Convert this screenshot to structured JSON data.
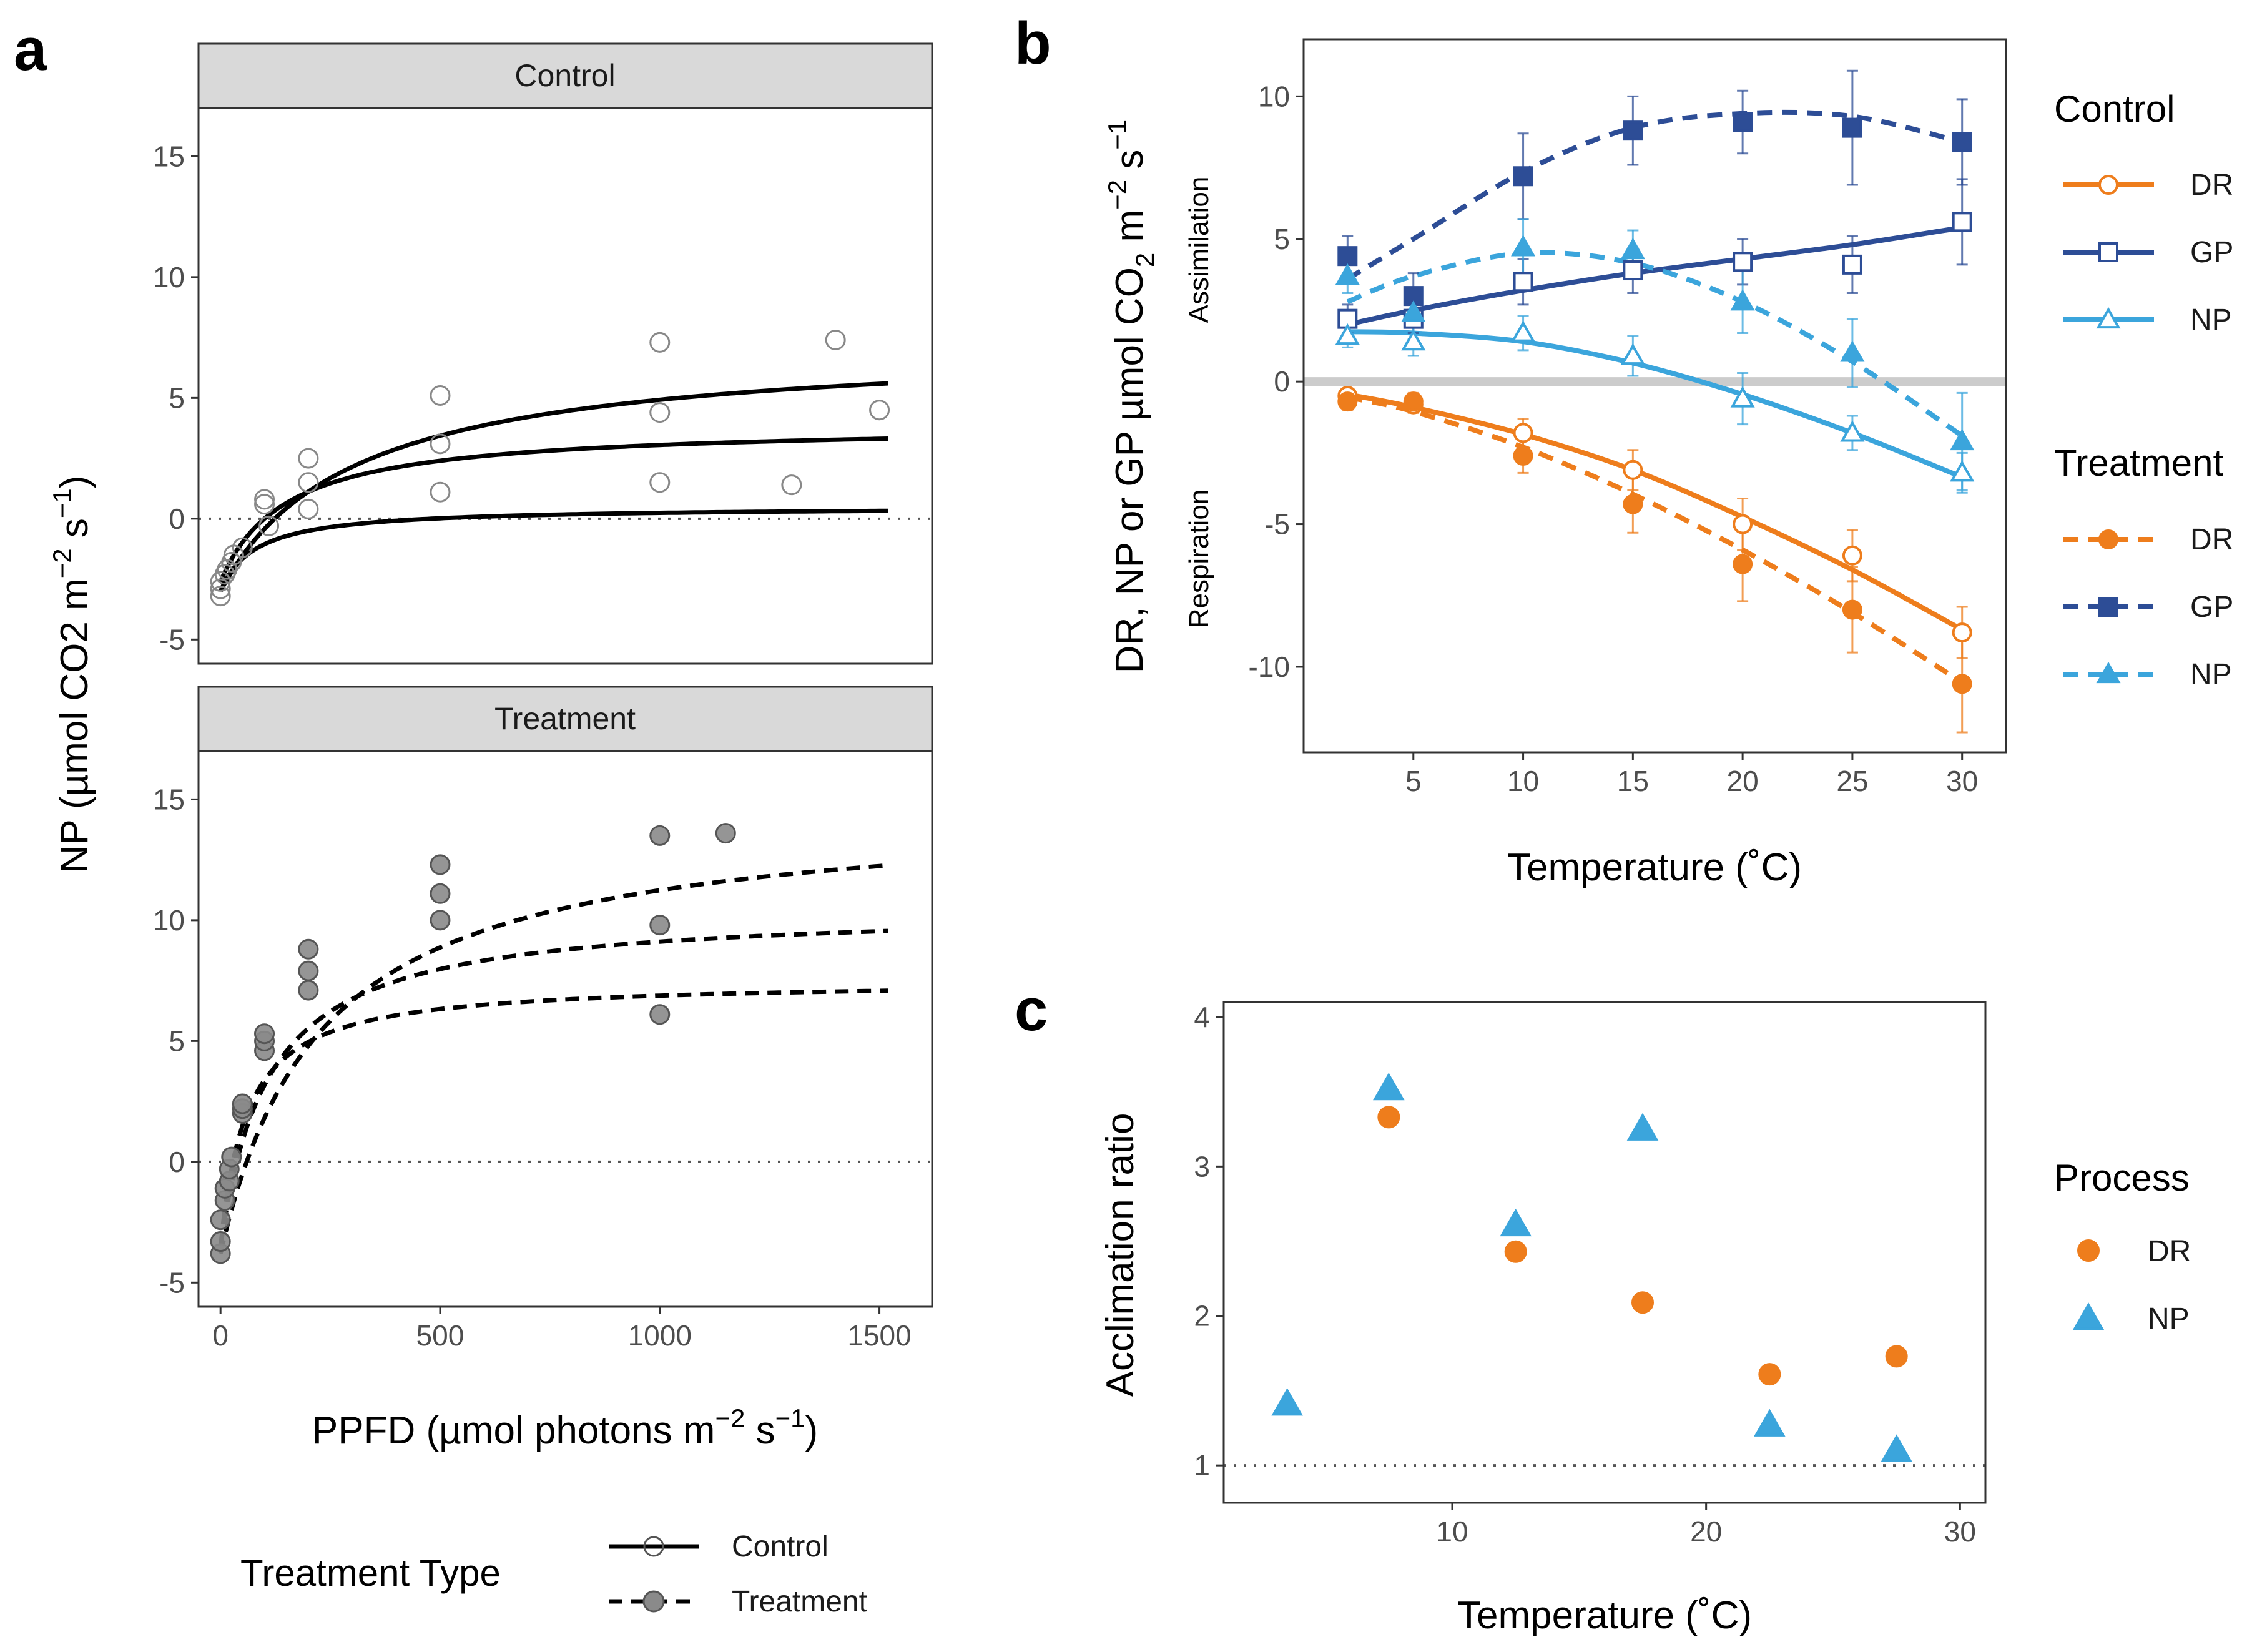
{
  "colors": {
    "dr": "#EE7D1C",
    "gp": "#2D4D96",
    "np": "#3BA5DC",
    "treatment_fill": "#8a8a8a",
    "strip_fill": "#d9d9d9",
    "zero_line": "#cccccc"
  },
  "chart_data": [
    {
      "panel": "a",
      "type": "scatter",
      "facets": [
        "Control",
        "Treatment"
      ],
      "xlabel": "PPFD (µmol photons m",
      "xlabel_sup1": "−2",
      "xlabel_mid": " s",
      "xlabel_sup2": "−1",
      "xlabel_end": ")",
      "ylabel": "NP (µmol CO2 m",
      "ylabel_sup1": "−2",
      "ylabel_mid": " s",
      "ylabel_sup2": "−1",
      "ylabel_end": ")",
      "xlim": [
        -50,
        1620
      ],
      "ylim": [
        -6,
        17
      ],
      "xticks": [
        0,
        500,
        1000,
        1500
      ],
      "yticks": [
        -5,
        0,
        5,
        10,
        15
      ],
      "reference_line": 0,
      "legend": {
        "title": "Treatment Type",
        "items": [
          {
            "label": "Control",
            "linestyle": "solid",
            "marker": "open-circle"
          },
          {
            "label": "Treatment",
            "linestyle": "dashed",
            "marker": "filled-circle"
          }
        ]
      },
      "control_curves": [
        {
          "pmax": 10.3,
          "k": 300,
          "rd": 3.0
        },
        {
          "pmax": 6.5,
          "k": 150,
          "rd": 2.6
        },
        {
          "pmax": 3.5,
          "k": 80,
          "rd": 3.0
        }
      ],
      "treatment_curves": [
        {
          "pmax": 18.5,
          "k": 230,
          "rd": 3.8
        },
        {
          "pmax": 14.0,
          "k": 110,
          "rd": 3.5
        },
        {
          "pmax": 11.0,
          "k": 60,
          "rd": 3.5
        }
      ],
      "control_points": [
        [
          0,
          -3.2
        ],
        [
          0,
          -2.9
        ],
        [
          0,
          -2.6
        ],
        [
          10,
          -2.3
        ],
        [
          15,
          -2.1
        ],
        [
          25,
          -1.8
        ],
        [
          30,
          -1.5
        ],
        [
          50,
          -1.2
        ],
        [
          100,
          0.8
        ],
        [
          100,
          0.6
        ],
        [
          110,
          -0.3
        ],
        [
          200,
          2.5
        ],
        [
          200,
          1.5
        ],
        [
          200,
          0.4
        ],
        [
          500,
          5.1
        ],
        [
          500,
          3.1
        ],
        [
          500,
          1.1
        ],
        [
          1000,
          7.3
        ],
        [
          1000,
          4.4
        ],
        [
          1000,
          1.5
        ],
        [
          1300,
          1.4
        ],
        [
          1400,
          7.4
        ],
        [
          1500,
          4.5
        ]
      ],
      "treatment_points": [
        [
          0,
          -3.8
        ],
        [
          0,
          -3.3
        ],
        [
          0,
          -2.4
        ],
        [
          10,
          -1.6
        ],
        [
          10,
          -1.1
        ],
        [
          20,
          -0.8
        ],
        [
          20,
          -0.3
        ],
        [
          25,
          0.2
        ],
        [
          50,
          2.0
        ],
        [
          50,
          2.2
        ],
        [
          50,
          2.4
        ],
        [
          100,
          4.6
        ],
        [
          100,
          5.0
        ],
        [
          100,
          5.3
        ],
        [
          200,
          7.1
        ],
        [
          200,
          7.9
        ],
        [
          200,
          8.8
        ],
        [
          500,
          10.0
        ],
        [
          500,
          11.1
        ],
        [
          500,
          12.3
        ],
        [
          1000,
          6.1
        ],
        [
          1000,
          9.8
        ],
        [
          1000,
          13.5
        ],
        [
          1150,
          13.6
        ]
      ]
    },
    {
      "panel": "b",
      "type": "line",
      "xlabel": "Temperature (˚C)",
      "ylabel": "DR, NP or GP µmol CO",
      "ylabel_sub": "2",
      "ylabel_mid": " m",
      "ylabel_sup1": "−2",
      "ylabel_mid2": " s",
      "ylabel_sup2": "−1",
      "xlim": [
        0,
        32
      ],
      "ylim": [
        -13,
        12
      ],
      "xticks": [
        5,
        10,
        15,
        20,
        25,
        30
      ],
      "yticks": [
        -10,
        -5,
        0,
        5,
        10
      ],
      "reference_line": 0,
      "side_labels": {
        "upper": "Assimilation",
        "lower": "Respiration"
      },
      "x": [
        2,
        5,
        10,
        15,
        20,
        25,
        30
      ],
      "series": [
        {
          "name": "DR",
          "group": "Control",
          "linestyle": "solid",
          "marker": "open-circle",
          "values": [
            -0.5,
            -0.8,
            -1.8,
            -3.1,
            -5.0,
            -6.1,
            -8.8
          ],
          "errors": [
            0.2,
            0.3,
            0.5,
            0.7,
            0.9,
            0.9,
            0.9
          ],
          "fit": [
            -0.45,
            -0.9,
            -1.85,
            -3.1,
            -4.75,
            -6.6,
            -8.7
          ]
        },
        {
          "name": "GP",
          "group": "Control",
          "linestyle": "solid",
          "marker": "open-square",
          "values": [
            2.2,
            2.2,
            3.5,
            3.9,
            4.2,
            4.1,
            5.6
          ],
          "errors": [
            0.5,
            0.5,
            0.8,
            0.8,
            0.8,
            1.0,
            1.5
          ],
          "fit": [
            2.0,
            2.5,
            3.2,
            3.8,
            4.3,
            4.8,
            5.4
          ]
        },
        {
          "name": "NP",
          "group": "Control",
          "linestyle": "solid",
          "marker": "open-triangle",
          "values": [
            1.6,
            1.4,
            1.7,
            0.9,
            -0.6,
            -1.8,
            -3.2
          ],
          "errors": [
            0.4,
            0.5,
            0.6,
            0.7,
            0.9,
            0.6,
            0.7
          ],
          "fit": [
            1.75,
            1.7,
            1.4,
            0.65,
            -0.45,
            -1.8,
            -3.35
          ]
        },
        {
          "name": "DR",
          "group": "Treatment",
          "linestyle": "dashed",
          "marker": "filled-circle",
          "values": [
            -0.7,
            -0.7,
            -2.6,
            -4.3,
            -6.4,
            -8.0,
            -10.6
          ],
          "errors": [
            0.3,
            0.3,
            0.6,
            1.0,
            1.3,
            1.5,
            1.7
          ],
          "fit": [
            -0.55,
            -1.05,
            -2.3,
            -3.95,
            -5.9,
            -8.1,
            -10.55
          ]
        },
        {
          "name": "GP",
          "group": "Treatment",
          "linestyle": "dashed",
          "marker": "filled-square",
          "values": [
            4.4,
            3.0,
            7.2,
            8.8,
            9.1,
            8.9,
            8.4
          ],
          "errors": [
            0.7,
            0.8,
            1.5,
            1.2,
            1.1,
            2.0,
            1.5
          ],
          "fit": [
            3.6,
            5.0,
            7.35,
            8.9,
            9.4,
            9.3,
            8.4
          ]
        },
        {
          "name": "NP",
          "group": "Treatment",
          "linestyle": "dashed",
          "marker": "filled-triangle",
          "values": [
            3.7,
            2.4,
            4.7,
            4.6,
            2.8,
            1.0,
            -2.1
          ],
          "errors": [
            0.6,
            0.9,
            1.0,
            0.7,
            1.1,
            1.2,
            1.7
          ],
          "fit": [
            2.8,
            3.7,
            4.5,
            4.15,
            2.8,
            0.7,
            -1.9
          ]
        }
      ],
      "legend": [
        {
          "title": "Control",
          "items": [
            "DR",
            "GP",
            "NP"
          ]
        },
        {
          "title": "Treatment",
          "items": [
            "DR",
            "GP",
            "NP"
          ]
        }
      ]
    },
    {
      "panel": "c",
      "type": "scatter",
      "xlabel": "Temperature (˚C)",
      "ylabel": "Acclimation ratio",
      "xlim": [
        1,
        31
      ],
      "ylim": [
        0.75,
        4.1
      ],
      "xticks": [
        10,
        20,
        30
      ],
      "yticks": [
        1,
        2,
        3,
        4
      ],
      "reference_line": 1,
      "legend": {
        "title": "Process",
        "items": [
          "DR",
          "NP"
        ]
      },
      "series": [
        {
          "name": "DR",
          "marker": "circle",
          "x": [
            7.5,
            12.5,
            17.5,
            22.5,
            27.5
          ],
          "y": [
            3.33,
            2.43,
            2.09,
            1.61,
            1.73
          ]
        },
        {
          "name": "NP",
          "marker": "triangle",
          "x": [
            3.5,
            7.5,
            12.5,
            17.5,
            22.5,
            27.5
          ],
          "y": [
            1.41,
            3.52,
            2.61,
            3.25,
            1.27,
            1.1
          ]
        }
      ]
    }
  ]
}
